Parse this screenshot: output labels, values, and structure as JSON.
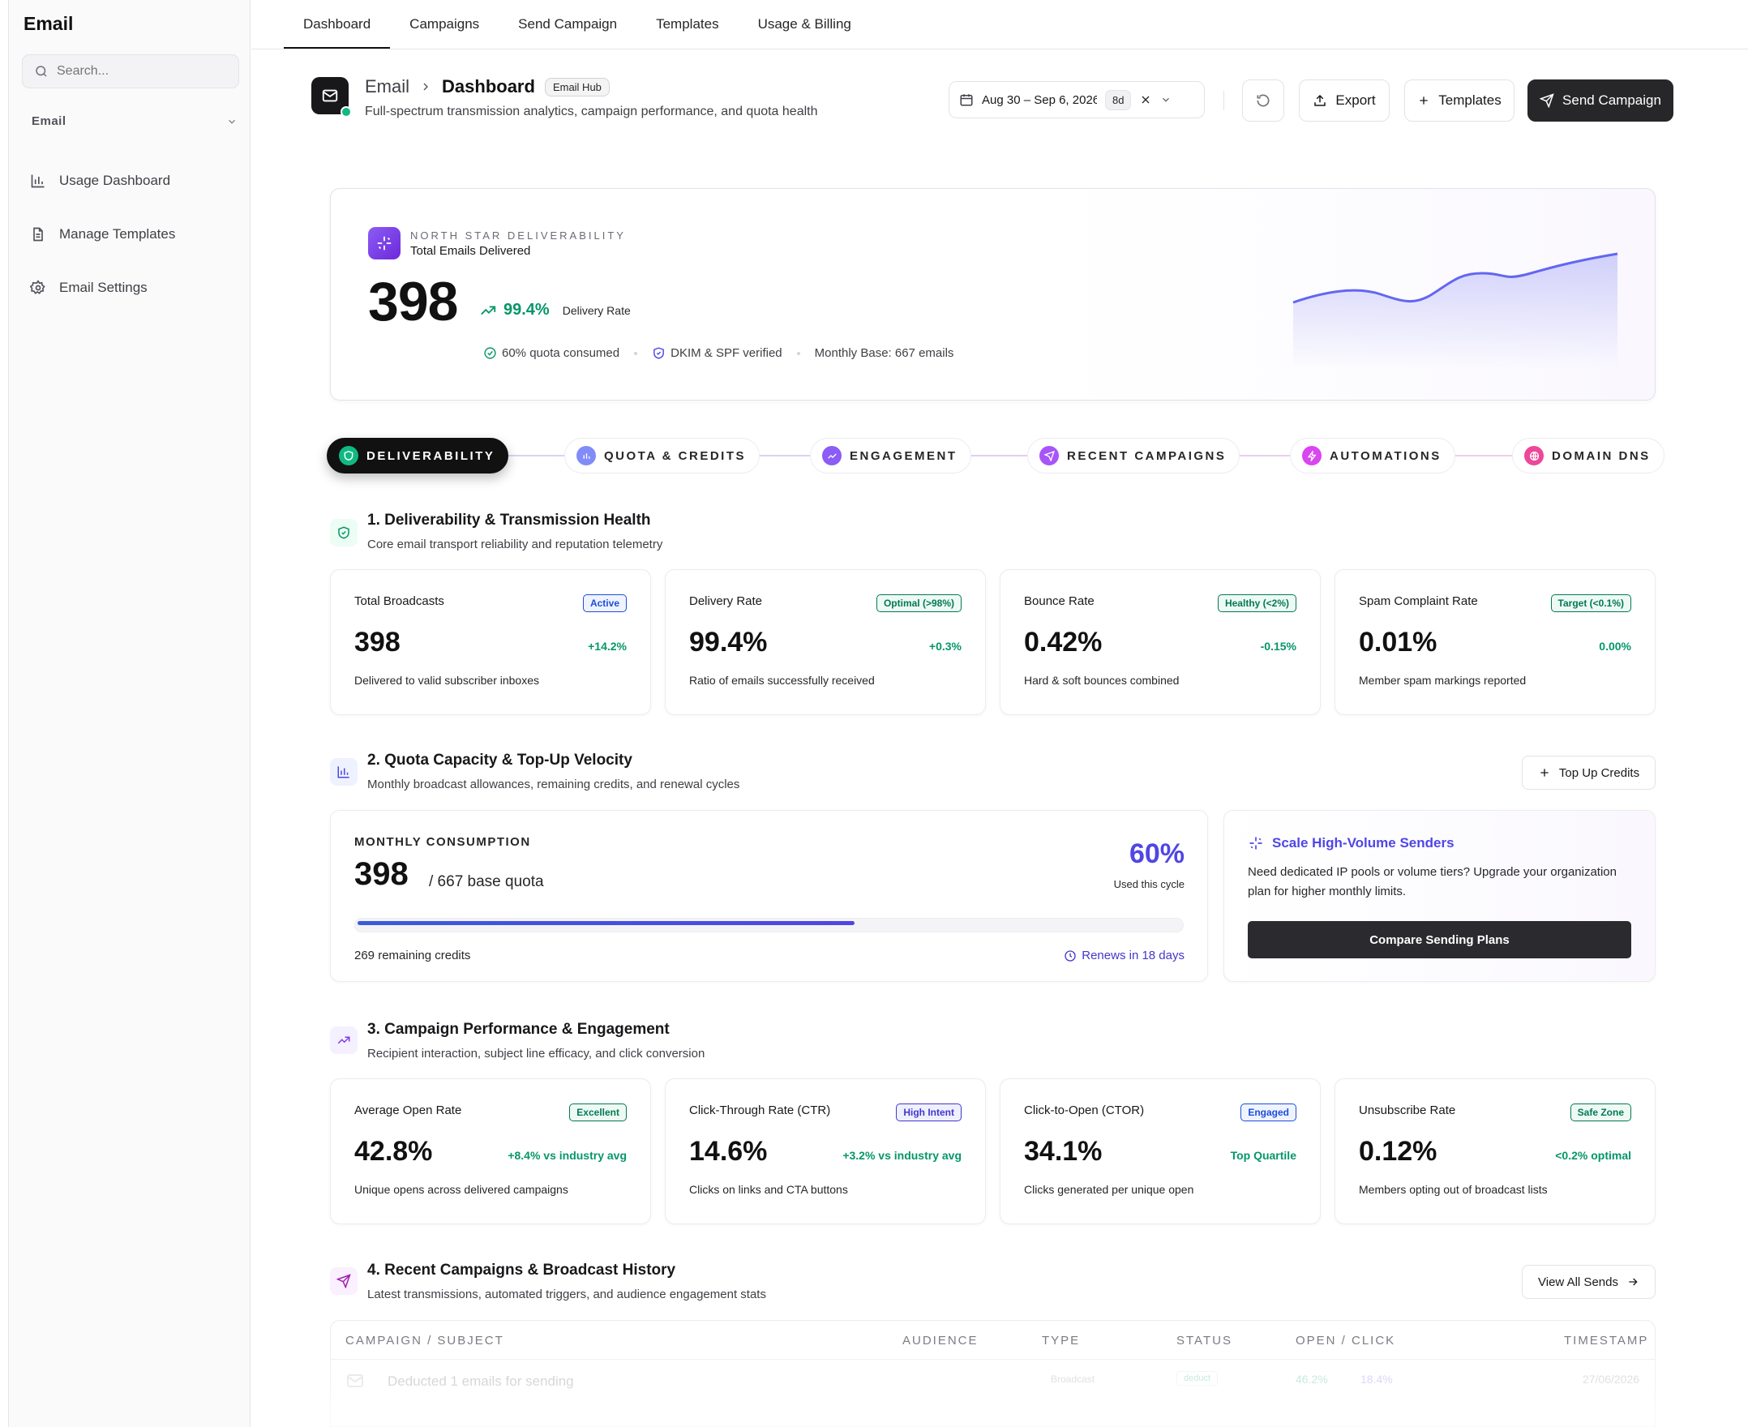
{
  "sidebar": {
    "brand": "Email",
    "search_placeholder": "Search...",
    "section_label": "Email",
    "items": [
      {
        "label": "Usage Dashboard",
        "icon": "bar-chart-icon"
      },
      {
        "label": "Manage Templates",
        "icon": "document-icon"
      },
      {
        "label": "Email Settings",
        "icon": "gear-icon"
      }
    ]
  },
  "topnav": {
    "tabs": [
      "Dashboard",
      "Campaigns",
      "Send Campaign",
      "Templates",
      "Usage & Billing"
    ],
    "active": "Dashboard"
  },
  "header": {
    "crumb_parent": "Email",
    "crumb_current": "Dashboard",
    "badge": "Email Hub",
    "subtitle": "Full-spectrum transmission analytics, campaign performance, and quota health",
    "date_range": "Aug 30 – Sep 6, 2026",
    "date_badge": "8d",
    "export_label": "Export",
    "templates_label": "Templates",
    "send_label": "Send Campaign"
  },
  "hero": {
    "eyebrow": "NORTH STAR DELIVERABILITY",
    "title": "Total Emails Delivered",
    "value": "398",
    "rate": "99.4%",
    "rate_label": "Delivery Rate",
    "meta_quota": "60% quota consumed",
    "meta_dkim": "DKIM & SPF verified",
    "meta_base": "Monthly Base: 667 emails"
  },
  "stepper": [
    {
      "label": "DELIVERABILITY",
      "active": true,
      "color": "#10b981"
    },
    {
      "label": "QUOTA & CREDITS",
      "active": false,
      "color": "#818cf8"
    },
    {
      "label": "ENGAGEMENT",
      "active": false,
      "color": "#8b5cf6"
    },
    {
      "label": "RECENT CAMPAIGNS",
      "active": false,
      "color": "#a855f7"
    },
    {
      "label": "AUTOMATIONS",
      "active": false,
      "color": "#d946ef"
    },
    {
      "label": "DOMAIN DNS",
      "active": false,
      "color": "#ec4899"
    }
  ],
  "sections": {
    "deliverability": {
      "title": "1. Deliverability & Transmission Health",
      "subtitle": "Core email transport reliability and reputation telemetry"
    },
    "quota": {
      "title": "2. Quota Capacity & Top-Up Velocity",
      "subtitle": "Monthly broadcast allowances, remaining credits, and renewal cycles",
      "action": "Top Up Credits"
    },
    "engagement": {
      "title": "3. Campaign Performance & Engagement",
      "subtitle": "Recipient interaction, subject line efficacy, and click conversion"
    },
    "recent": {
      "title": "4. Recent Campaigns & Broadcast History",
      "subtitle": "Latest transmissions, automated triggers, and audience engagement stats",
      "action": "View All Sends"
    }
  },
  "deliverability_cards": [
    {
      "title": "Total Broadcasts",
      "badge": "Active",
      "value": "398",
      "delta": "+14.2%",
      "desc": "Delivered to valid subscriber inboxes"
    },
    {
      "title": "Delivery Rate",
      "badge": "Optimal (>98%)",
      "value": "99.4%",
      "delta": "+0.3%",
      "desc": "Ratio of emails successfully received"
    },
    {
      "title": "Bounce Rate",
      "badge": "Healthy (<2%)",
      "value": "0.42%",
      "delta": "-0.15%",
      "desc": "Hard & soft bounces combined"
    },
    {
      "title": "Spam Complaint Rate",
      "badge": "Target (<0.1%)",
      "value": "0.01%",
      "delta": "0.00%",
      "desc": "Member spam markings reported"
    }
  ],
  "quota": {
    "eyebrow": "MONTHLY CONSUMPTION",
    "used": "398",
    "base": "/ 667 base quota",
    "pct": "60%",
    "pct_value": 0.6,
    "used_label": "Used this cycle",
    "remaining": "269 remaining credits",
    "renews": "Renews in 18 days"
  },
  "upsell": {
    "title": "Scale High-Volume Senders",
    "desc": "Need dedicated IP pools or volume tiers? Upgrade your organization plan for higher monthly limits.",
    "button": "Compare Sending Plans"
  },
  "engagement_cards": [
    {
      "title": "Average Open Rate",
      "badge": "Excellent",
      "value": "42.8%",
      "delta": "+8.4% vs industry avg",
      "desc": "Unique opens across delivered campaigns"
    },
    {
      "title": "Click-Through Rate (CTR)",
      "badge": "High Intent",
      "value": "14.6%",
      "delta": "+3.2% vs industry avg",
      "desc": "Clicks on links and CTA buttons"
    },
    {
      "title": "Click-to-Open (CTOR)",
      "badge": "Engaged",
      "value": "34.1%",
      "delta": "Top Quartile",
      "desc": "Clicks generated per unique open"
    },
    {
      "title": "Unsubscribe Rate",
      "badge": "Safe Zone",
      "value": "0.12%",
      "delta": "<0.2% optimal",
      "desc": "Members opting out of broadcast lists"
    }
  ],
  "table": {
    "headers": [
      "CAMPAIGN / SUBJECT",
      "AUDIENCE",
      "TYPE",
      "STATUS",
      "OPEN / CLICK",
      "TIMESTAMP"
    ],
    "rows": [
      {
        "subject": "Deducted 1 emails for sending",
        "type": "Broadcast",
        "status": "deduct",
        "open": "46.2%",
        "click": "18.4%",
        "timestamp": "27/06/2026"
      }
    ]
  }
}
